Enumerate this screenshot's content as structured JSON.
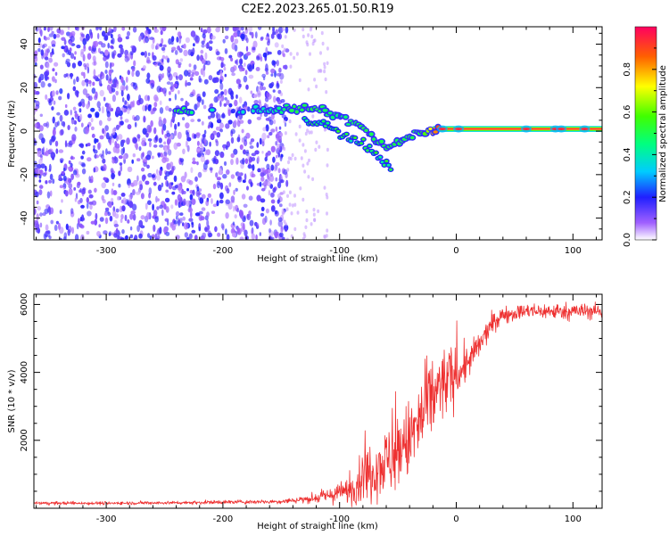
{
  "title": "C2E2.2023.265.01.50.R19",
  "colors": {
    "snr_line": "#ee3030",
    "axis": "#000000",
    "background": "#ffffff"
  },
  "chart_data": [
    {
      "type": "heatmap",
      "xlabel": "Height of straight line (km)",
      "ylabel": "Frequency (Hz)",
      "xlim": [
        -362,
        125
      ],
      "ylim": [
        -50,
        48
      ],
      "x_ticks": [
        {
          "value": -300,
          "label": "-300"
        },
        {
          "value": -200,
          "label": "-200"
        },
        {
          "value": -100,
          "label": "-100"
        },
        {
          "value": 0,
          "label": "0"
        },
        {
          "value": 100,
          "label": "100"
        }
      ],
      "y_ticks": [
        {
          "value": -40,
          "label": "-40"
        },
        {
          "value": -20,
          "label": "-20"
        },
        {
          "value": 0,
          "label": "0"
        },
        {
          "value": 20,
          "label": "20"
        },
        {
          "value": 40,
          "label": "40"
        }
      ],
      "colorbar": {
        "label": "Normalized spectral amplitude",
        "range": [
          0,
          1
        ],
        "ticks": [
          {
            "value": 0.0,
            "label": "0.0"
          },
          {
            "value": 0.2,
            "label": "0.2"
          },
          {
            "value": 0.4,
            "label": "0.4"
          },
          {
            "value": 0.6,
            "label": "0.6"
          },
          {
            "value": 0.8,
            "label": "0.8"
          }
        ]
      },
      "noise_region": {
        "x_range": [
          -362,
          -145
        ],
        "freq_range": [
          -50,
          48
        ],
        "amplitude": 0.15
      },
      "signal_ridge": [
        {
          "x": -240,
          "freq": 9,
          "amplitude": 0.5
        },
        {
          "x": -200,
          "freq": 9,
          "amplitude": 0.35
        },
        {
          "x": -160,
          "freq": 10,
          "amplitude": 0.4
        },
        {
          "x": -140,
          "freq": 10,
          "amplitude": 0.5
        },
        {
          "x": -120,
          "freq": 10,
          "amplitude": 0.5
        },
        {
          "x": -100,
          "freq": 7,
          "amplitude": 0.45
        },
        {
          "x": -80,
          "freq": 1,
          "amplitude": 0.5
        },
        {
          "x": -60,
          "freq": -8,
          "amplitude": 0.5
        },
        {
          "x": -45,
          "freq": -4,
          "amplitude": 0.5
        },
        {
          "x": -30,
          "freq": 0,
          "amplitude": 0.5
        },
        {
          "x": -15,
          "freq": 1,
          "amplitude": 0.9
        },
        {
          "x": 0,
          "freq": 1,
          "amplitude": 0.95
        },
        {
          "x": 50,
          "freq": 1,
          "amplitude": 1.0
        },
        {
          "x": 90,
          "freq": 1,
          "amplitude": 0.9
        },
        {
          "x": 125,
          "freq": 1,
          "amplitude": 1.0
        }
      ],
      "secondary_branch": [
        {
          "x": -130,
          "freq": 5
        },
        {
          "x": -110,
          "freq": 2
        },
        {
          "x": -90,
          "freq": -3
        },
        {
          "x": -70,
          "freq": -10
        },
        {
          "x": -55,
          "freq": -17
        }
      ]
    },
    {
      "type": "line",
      "xlabel": "Height of straight line (km)",
      "ylabel": "SNR (10 * v/v)",
      "xlim": [
        -362,
        125
      ],
      "ylim": [
        0,
        6300
      ],
      "x_ticks": [
        {
          "value": -300,
          "label": "-300"
        },
        {
          "value": -200,
          "label": "-200"
        },
        {
          "value": -100,
          "label": "-100"
        },
        {
          "value": 0,
          "label": "0"
        },
        {
          "value": 100,
          "label": "100"
        }
      ],
      "y_ticks": [
        {
          "value": 2000,
          "label": "2000"
        },
        {
          "value": 4000,
          "label": "4000"
        },
        {
          "value": 6000,
          "label": "6000"
        }
      ],
      "series": [
        {
          "x": [
            -362,
            -300,
            -250,
            -200,
            -150,
            -120,
            -100,
            -90,
            -80,
            -70,
            -60,
            -50,
            -40,
            -30,
            -20,
            -10,
            0,
            10,
            20,
            30,
            40,
            60,
            80,
            100,
            125
          ],
          "mean": [
            150,
            150,
            160,
            180,
            200,
            300,
            450,
            550,
            900,
            1200,
            1400,
            1600,
            2000,
            2600,
            3300,
            3700,
            3900,
            4300,
            4800,
            5400,
            5700,
            5800,
            5800,
            5800,
            5800
          ],
          "spread": [
            40,
            40,
            40,
            50,
            50,
            120,
            250,
            350,
            600,
            800,
            800,
            900,
            1000,
            1100,
            1000,
            900,
            700,
            400,
            350,
            250,
            200,
            180,
            200,
            200,
            200
          ]
        }
      ]
    }
  ]
}
